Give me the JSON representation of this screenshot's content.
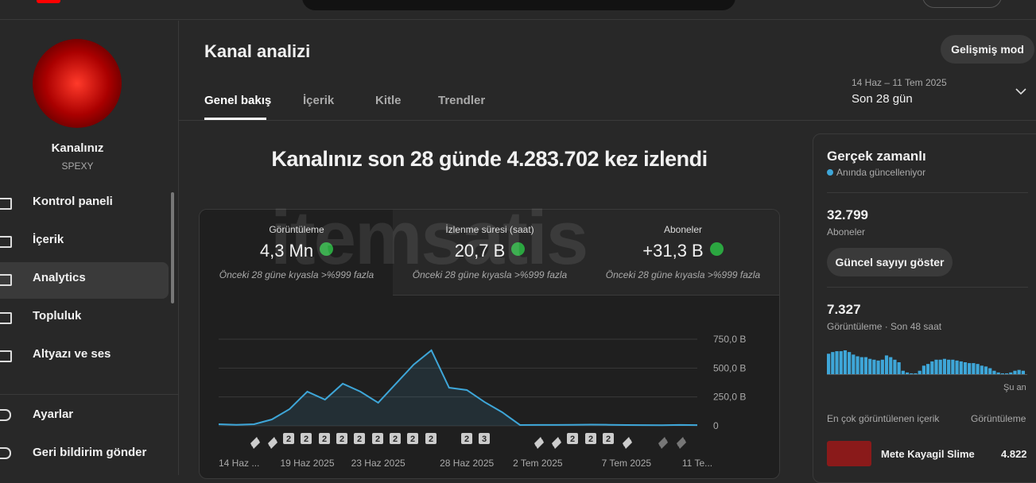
{
  "sidebar": {
    "channel_name": "Kanalınız",
    "handle": "SPEXY",
    "nav": [
      "Kontrol paneli",
      "İçerik",
      "Analytics",
      "Topluluk",
      "Altyazı ve ses"
    ],
    "footer_nav": [
      "Ayarlar",
      "Geri bildirim gönder"
    ]
  },
  "header": {
    "title": "Kanal analizi",
    "advanced_button": "Gelişmiş mod",
    "date_range": "14 Haz – 11 Tem 2025",
    "period": "Son 28 gün",
    "tabs": [
      "Genel bakış",
      "İçerik",
      "Kitle",
      "Trendler"
    ]
  },
  "headline": "Kanalınız son 28 günde 4.283.702 kez izlendi",
  "watermark": "itemsatis",
  "metrics": [
    {
      "label": "Görüntüleme",
      "value": "4,3 Mn",
      "note": "Önceki 28 güne kıyasla >%999 fazla"
    },
    {
      "label": "İzlenme süresi (saat)",
      "value": "20,7 B",
      "note": "Önceki 28 güne kıyasla >%999 fazla"
    },
    {
      "label": "Aboneler",
      "value": "+31,3 B",
      "note": "Önceki 28 güne kıyasla >%999 fazla"
    }
  ],
  "chart_data": {
    "type": "line",
    "categories": [
      "14 Haz ...",
      null,
      null,
      null,
      null,
      "19 Haz 2025",
      null,
      null,
      null,
      "23 Haz 2025",
      null,
      null,
      null,
      null,
      "28 Haz 2025",
      null,
      null,
      null,
      "2 Tem 2025",
      null,
      null,
      null,
      null,
      "7 Tem 2025",
      null,
      null,
      null,
      "11 Te..."
    ],
    "series": [
      {
        "name": "Görüntüleme",
        "color": "#3ea6d8",
        "values": [
          14000,
          9000,
          14000,
          55000,
          145000,
          296000,
          227000,
          365000,
          296000,
          200000,
          365000,
          530000,
          654000,
          330000,
          310000,
          206000,
          117000,
          7000,
          8000,
          8000,
          9000,
          10000,
          9000,
          7000,
          6000,
          5000,
          8000,
          6000
        ]
      }
    ],
    "ylim": [
      0,
      750000
    ],
    "yticks": [
      0,
      {
        "value": 250000,
        "label": "250,0 B"
      },
      {
        "value": 500000,
        "label": "500,0 B"
      },
      {
        "value": 750000,
        "label": "750,0 B"
      }
    ],
    "grid": true,
    "markers": [
      "2",
      "2",
      "2",
      "2",
      "2",
      "2",
      "2",
      "2",
      "2",
      "2",
      "3",
      "2",
      "2",
      "2"
    ]
  },
  "realtime": {
    "title": "Gerçek zamanlı",
    "status": "Anında güncelleniyor",
    "subscribers": "32.799",
    "subscribers_label": "Aboneler",
    "show_button": "Güncel sayıyı göster",
    "views": "7.327",
    "views_label": "Görüntüleme · Son 48 saat",
    "now_label": "Şu an",
    "bars": {
      "color": "#3ea6d8",
      "values": [
        240,
        260,
        270,
        270,
        280,
        260,
        230,
        210,
        200,
        200,
        180,
        170,
        160,
        170,
        220,
        200,
        170,
        140,
        40,
        20,
        10,
        10,
        40,
        100,
        120,
        150,
        170,
        170,
        180,
        170,
        170,
        160,
        150,
        140,
        130,
        130,
        120,
        100,
        90,
        70,
        40,
        20,
        10,
        10,
        20,
        40,
        50,
        40
      ]
    },
    "top_content_label": "En çok görüntülenen içerik",
    "top_content_metric": "Görüntüleme",
    "top_content": [
      {
        "title": "Mete Kayagil Slime",
        "views": "4.822"
      }
    ]
  }
}
